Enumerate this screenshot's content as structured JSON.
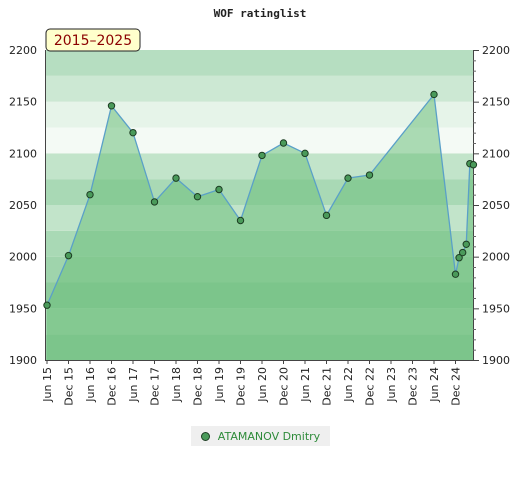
{
  "chart_data": {
    "type": "area",
    "title": "WOF ratinglist",
    "period_badge": "2015–2025",
    "ylim": [
      1900,
      2200
    ],
    "y_ticks": [
      1900,
      1950,
      2000,
      2050,
      2100,
      2150,
      2200
    ],
    "x_ticks": [
      "Jun 15",
      "Dec 15",
      "Jun 16",
      "Dec 16",
      "Jun 17",
      "Dec 17",
      "Jun 18",
      "Dec 18",
      "Jun 19",
      "Dec 19",
      "Jun 20",
      "Dec 20",
      "Jun 21",
      "Dec 21",
      "Jun 22",
      "Dec 22",
      "Jun 23",
      "Dec 23",
      "Jun 24",
      "Dec 24"
    ],
    "series": [
      {
        "name": "ATAMANOV Dmitry",
        "points": [
          {
            "x": "2015-06",
            "y": 1953
          },
          {
            "x": "2015-12",
            "y": 2001
          },
          {
            "x": "2016-06",
            "y": 2060
          },
          {
            "x": "2016-12",
            "y": 2146
          },
          {
            "x": "2017-06",
            "y": 2120
          },
          {
            "x": "2017-12",
            "y": 2053
          },
          {
            "x": "2018-06",
            "y": 2076
          },
          {
            "x": "2018-12",
            "y": 2058
          },
          {
            "x": "2019-06",
            "y": 2065
          },
          {
            "x": "2019-12",
            "y": 2035
          },
          {
            "x": "2020-06",
            "y": 2098
          },
          {
            "x": "2020-12",
            "y": 2110
          },
          {
            "x": "2021-06",
            "y": 2100
          },
          {
            "x": "2021-12",
            "y": 2040
          },
          {
            "x": "2022-06",
            "y": 2076
          },
          {
            "x": "2022-12",
            "y": 2079
          },
          {
            "x": "2024-06",
            "y": 2157
          },
          {
            "x": "2024-12",
            "y": 1983
          },
          {
            "x": "2025-01",
            "y": 1999
          },
          {
            "x": "2025-02",
            "y": 2004
          },
          {
            "x": "2025-03",
            "y": 2012
          },
          {
            "x": "2025-04",
            "y": 2090
          },
          {
            "x": "2025-05",
            "y": 2089
          }
        ]
      }
    ],
    "legend_position": "bottom",
    "colors": {
      "line": "#5aa0c8",
      "fill": "#6dbf7c",
      "marker_fill": "#4a9a5a",
      "marker_stroke": "#1c3d22",
      "band_dark": "#b5dec1",
      "band_light": "#e4f3e8",
      "badge_bg": "#ffffcc",
      "badge_text": "#8b0000"
    }
  }
}
